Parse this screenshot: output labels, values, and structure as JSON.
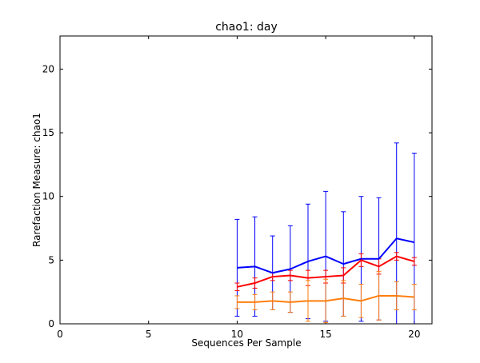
{
  "chart_data": {
    "type": "line",
    "title": "chao1: day",
    "xlabel": "Sequences Per Sample",
    "ylabel": "Rarefaction Measure: chao1",
    "xlim": [
      0,
      21
    ],
    "ylim": [
      0,
      22.6
    ],
    "xticks": [
      0,
      5,
      10,
      15,
      20
    ],
    "yticks": [
      0,
      5,
      10,
      15,
      20
    ],
    "x": [
      10,
      11,
      12,
      13,
      14,
      15,
      16,
      17,
      18,
      19,
      20
    ],
    "series": [
      {
        "color": "#0000ff",
        "values": [
          4.4,
          4.5,
          4.0,
          4.3,
          4.9,
          5.3,
          4.7,
          5.1,
          5.1,
          6.7,
          6.4
        ],
        "err": [
          3.8,
          3.9,
          2.9,
          3.4,
          4.5,
          5.1,
          4.1,
          4.9,
          4.8,
          7.5,
          7.0
        ]
      },
      {
        "color": "#ff0000",
        "values": [
          2.9,
          3.2,
          3.7,
          3.8,
          3.6,
          3.7,
          3.8,
          5.0,
          4.5,
          5.3,
          4.9
        ],
        "err": [
          0.3,
          0.4,
          0.3,
          0.4,
          0.6,
          0.5,
          0.6,
          0.5,
          0.6,
          0.3,
          0.3
        ]
      },
      {
        "color": "#ff7f0e",
        "values": [
          1.7,
          1.7,
          1.8,
          1.7,
          1.8,
          1.8,
          2.0,
          1.8,
          2.2,
          2.2,
          2.1
        ],
        "err": [
          0.5,
          0.6,
          0.7,
          0.8,
          1.6,
          1.7,
          1.4,
          1.3,
          1.9,
          1.1,
          1.0
        ]
      }
    ]
  }
}
